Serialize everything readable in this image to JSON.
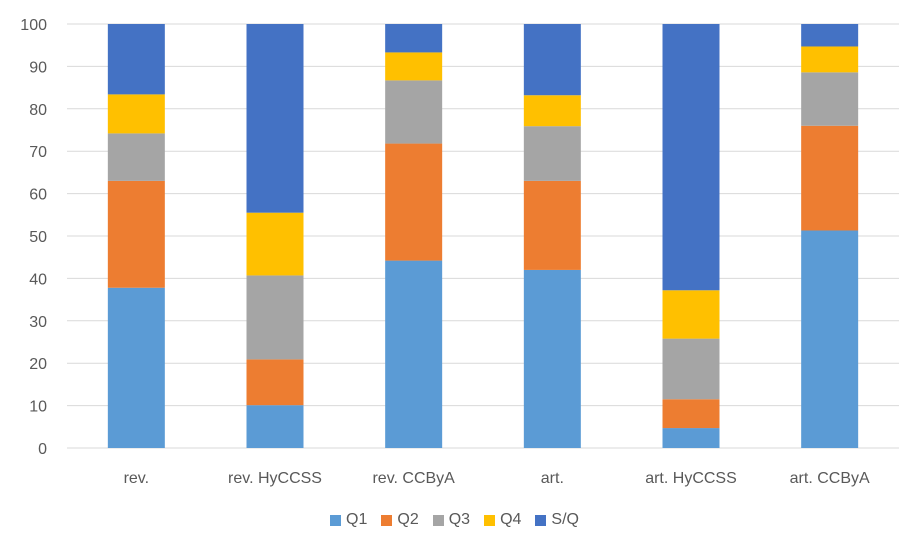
{
  "chart_data": {
    "type": "bar",
    "stacked": true,
    "percent": true,
    "categories": [
      "rev.",
      "rev. HyCCSS",
      "rev. CCByA",
      "art.",
      "art. HyCCSS",
      "art. CCByA"
    ],
    "series": [
      {
        "name": "Q1",
        "color": "#5B9BD5",
        "values": [
          37.8,
          10.1,
          44.2,
          42.0,
          4.7,
          51.3
        ]
      },
      {
        "name": "Q2",
        "color": "#ED7D31",
        "values": [
          25.2,
          10.8,
          27.6,
          21.0,
          6.8,
          24.7
        ]
      },
      {
        "name": "Q3",
        "color": "#A5A5A5",
        "values": [
          11.2,
          19.8,
          14.9,
          12.9,
          14.3,
          12.6
        ]
      },
      {
        "name": "Q4",
        "color": "#FFC000",
        "values": [
          9.2,
          14.8,
          6.6,
          7.3,
          11.4,
          6.1
        ]
      },
      {
        "name": "S/Q",
        "color": "#4472C4",
        "values": [
          16.6,
          44.5,
          6.7,
          16.8,
          62.8,
          5.3
        ]
      }
    ],
    "ylim": [
      0,
      100
    ],
    "yticks": [
      "0",
      "10",
      "20",
      "30",
      "40",
      "50",
      "60",
      "70",
      "80",
      "90",
      "100"
    ],
    "grid": true,
    "legend_position": "bottom"
  }
}
